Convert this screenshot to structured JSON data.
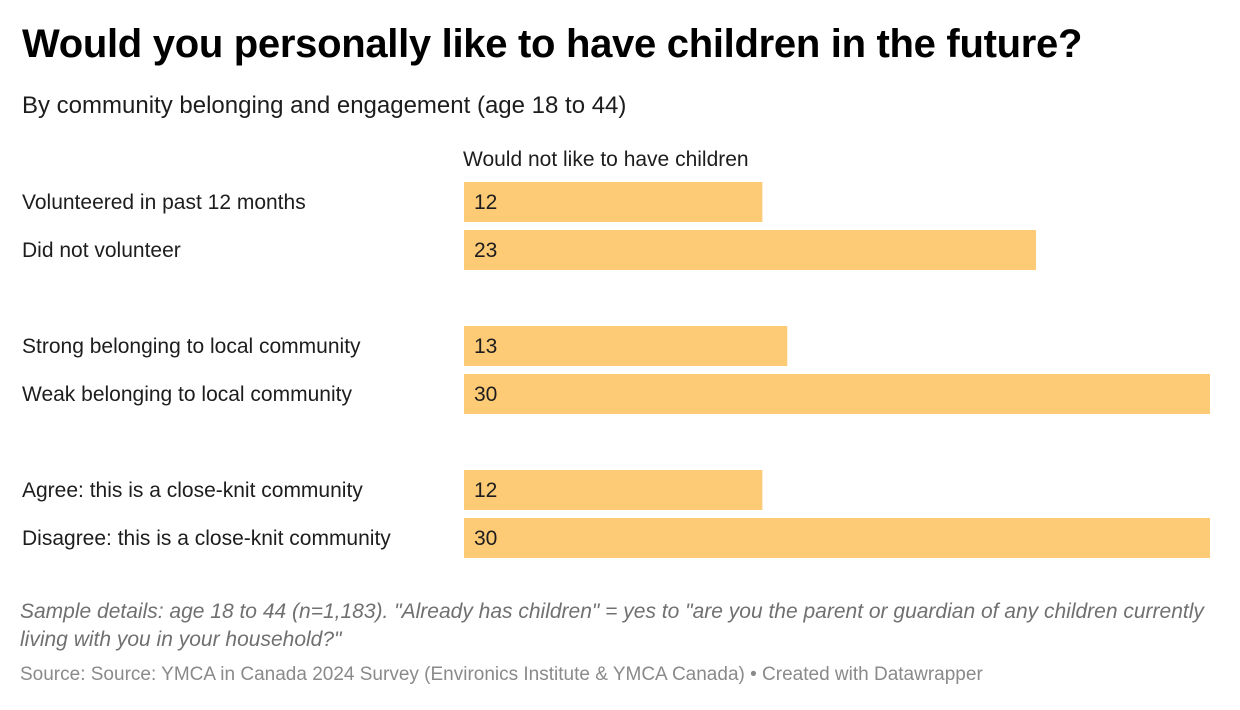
{
  "header": {
    "title": "Would you personally like to have children in the future?",
    "subtitle": "By community belonging and engagement (age 18 to 44)"
  },
  "chart_data": {
    "type": "bar",
    "orientation": "horizontal",
    "column_header": "Would not like to have children",
    "bar_color": "#fdca76",
    "xlim": [
      0,
      30
    ],
    "grid": false,
    "categories": [
      "Volunteered in past 12 months",
      "Did not volunteer",
      "Strong belonging to local community",
      "Weak belonging to local community",
      "Agree: this is a close-knit community",
      "Disagree: this is a close-knit community"
    ],
    "groups": [
      [
        0,
        1
      ],
      [
        2,
        3
      ],
      [
        4,
        5
      ]
    ],
    "series": [
      {
        "name": "Would not like to have children",
        "values": [
          12,
          23,
          13,
          30,
          12,
          30
        ]
      }
    ]
  },
  "footer": {
    "notes": "Sample details: age 18 to 44 (n=1,183). \"Already has children\" = yes to \"are you the parent or guardian of any children currently living with you in your household?\"",
    "source": "Source: Source: YMCA in Canada 2024 Survey (Environics Institute & YMCA Canada) • Created with Datawrapper"
  }
}
